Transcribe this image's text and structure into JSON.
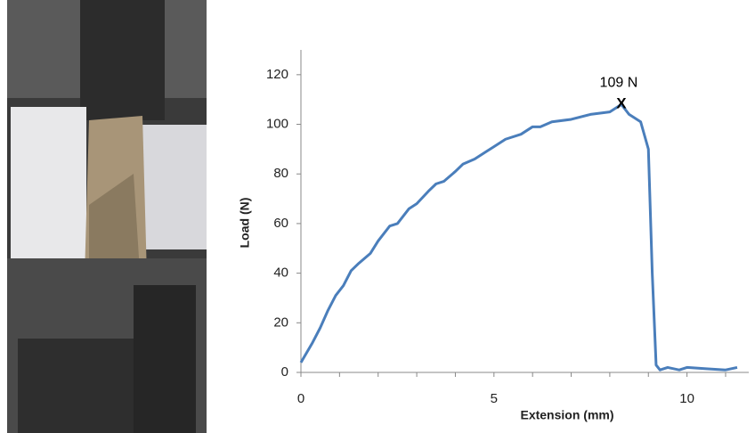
{
  "chart_data": {
    "type": "line",
    "x_label": "Extension (mm)",
    "y_label": "Load (N)",
    "annotation": "109 N",
    "marker_label": "X",
    "marker_at": [
      8.3,
      108
    ],
    "x": [
      0,
      0.3,
      0.5,
      0.7,
      0.9,
      1.1,
      1.3,
      1.5,
      1.8,
      2,
      2.3,
      2.5,
      2.8,
      3,
      3.3,
      3.5,
      3.7,
      4,
      4.2,
      4.5,
      4.8,
      5,
      5.3,
      5.7,
      6,
      6.2,
      6.5,
      7,
      7.5,
      8,
      8.3,
      8.5,
      8.8,
      9,
      9.1,
      9.2,
      9.3,
      9.5,
      9.8,
      10,
      10.5,
      11,
      11.3
    ],
    "series": [
      {
        "color": "#4a7ebb",
        "values": [
          4,
          12,
          18,
          25,
          31,
          35,
          41,
          44,
          48,
          53,
          59,
          60,
          66,
          68,
          73,
          76,
          77,
          81,
          84,
          86,
          89,
          91,
          94,
          96,
          99,
          99,
          101,
          102,
          104,
          105,
          108,
          104,
          101,
          90,
          40,
          3,
          1,
          2,
          1,
          2,
          1.5,
          1,
          2
        ]
      }
    ],
    "xlim": [
      0,
      11.6
    ],
    "xticks": [
      0,
      5,
      10
    ],
    "xminorticks": [
      1,
      2,
      3,
      4,
      6,
      7,
      8,
      9,
      11
    ],
    "ylim": [
      0,
      130
    ],
    "yticks": [
      0,
      20,
      40,
      60,
      80,
      100,
      120
    ]
  }
}
